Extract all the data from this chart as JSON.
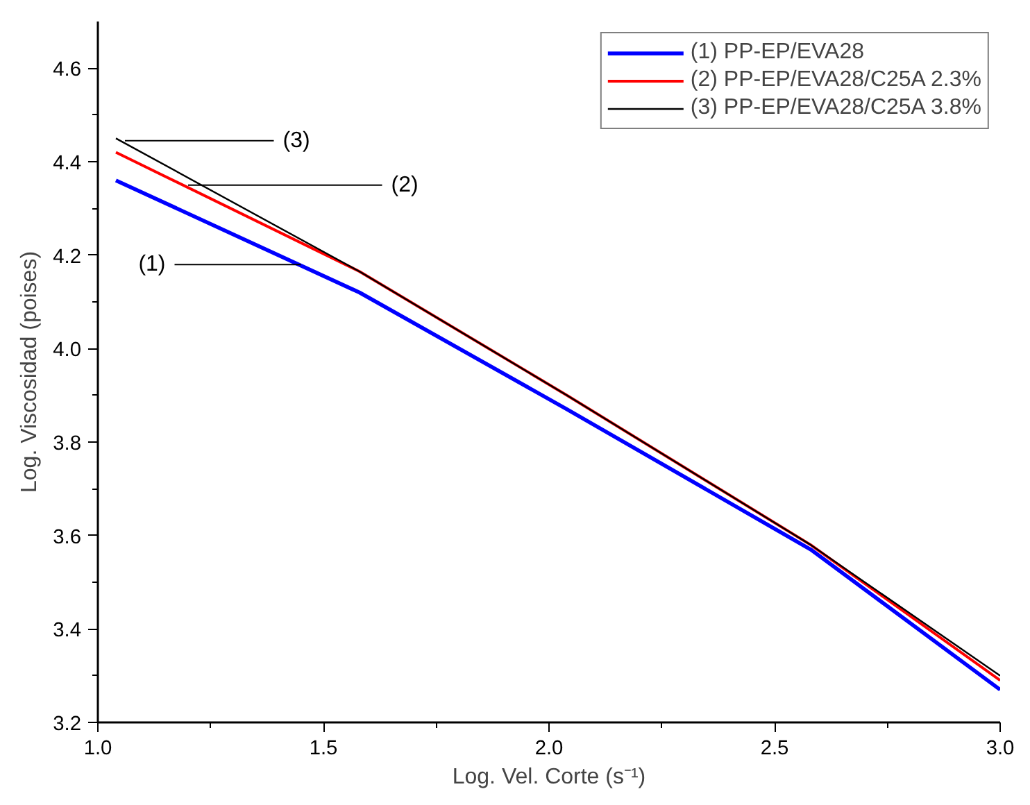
{
  "chart_data": {
    "type": "line",
    "xlabel": "Log. Vel. Corte (s⁻¹)",
    "ylabel": "Log. Viscosidad (poises)",
    "x": [
      1.04,
      1.58,
      2.04,
      2.58,
      3.0
    ],
    "series": [
      {
        "name": "(1) PP-EP/EVA28",
        "color": "#0000ff",
        "values": [
          4.36,
          4.12,
          3.87,
          3.57,
          3.27
        ]
      },
      {
        "name": "(2) PP-EP/EVA28/C25A 2.3%",
        "color": "#ff0000",
        "values": [
          4.42,
          4.165,
          3.9,
          3.58,
          3.29
        ]
      },
      {
        "name": "(3) PP-EP/EVA28/C25A 3.8%",
        "color": "#000000",
        "values": [
          4.45,
          4.165,
          3.9,
          3.58,
          3.3
        ]
      }
    ],
    "annotations": [
      {
        "text": "(3)",
        "x": 1.06,
        "y": 4.445
      },
      {
        "text": "(2)",
        "x": 1.2,
        "y": 4.35
      },
      {
        "text": "(1)",
        "x": 1.45,
        "y": 4.18
      }
    ],
    "xlim": [
      1.0,
      3.0
    ],
    "ylim": [
      3.2,
      4.7
    ],
    "xticks": [
      {
        "value": 1,
        "label": "1.0"
      },
      1.5,
      {
        "value": 2,
        "label": "2.0"
      },
      2.5,
      {
        "value": 3,
        "label": "3.0"
      }
    ],
    "yticks": [
      3.2,
      3.4,
      3.6,
      3.8,
      {
        "value": 4,
        "label": "4.0"
      },
      4.2,
      4.4,
      4.6
    ],
    "grid": false,
    "legend": "top right",
    "marker": "none",
    "line_style": "solid"
  }
}
